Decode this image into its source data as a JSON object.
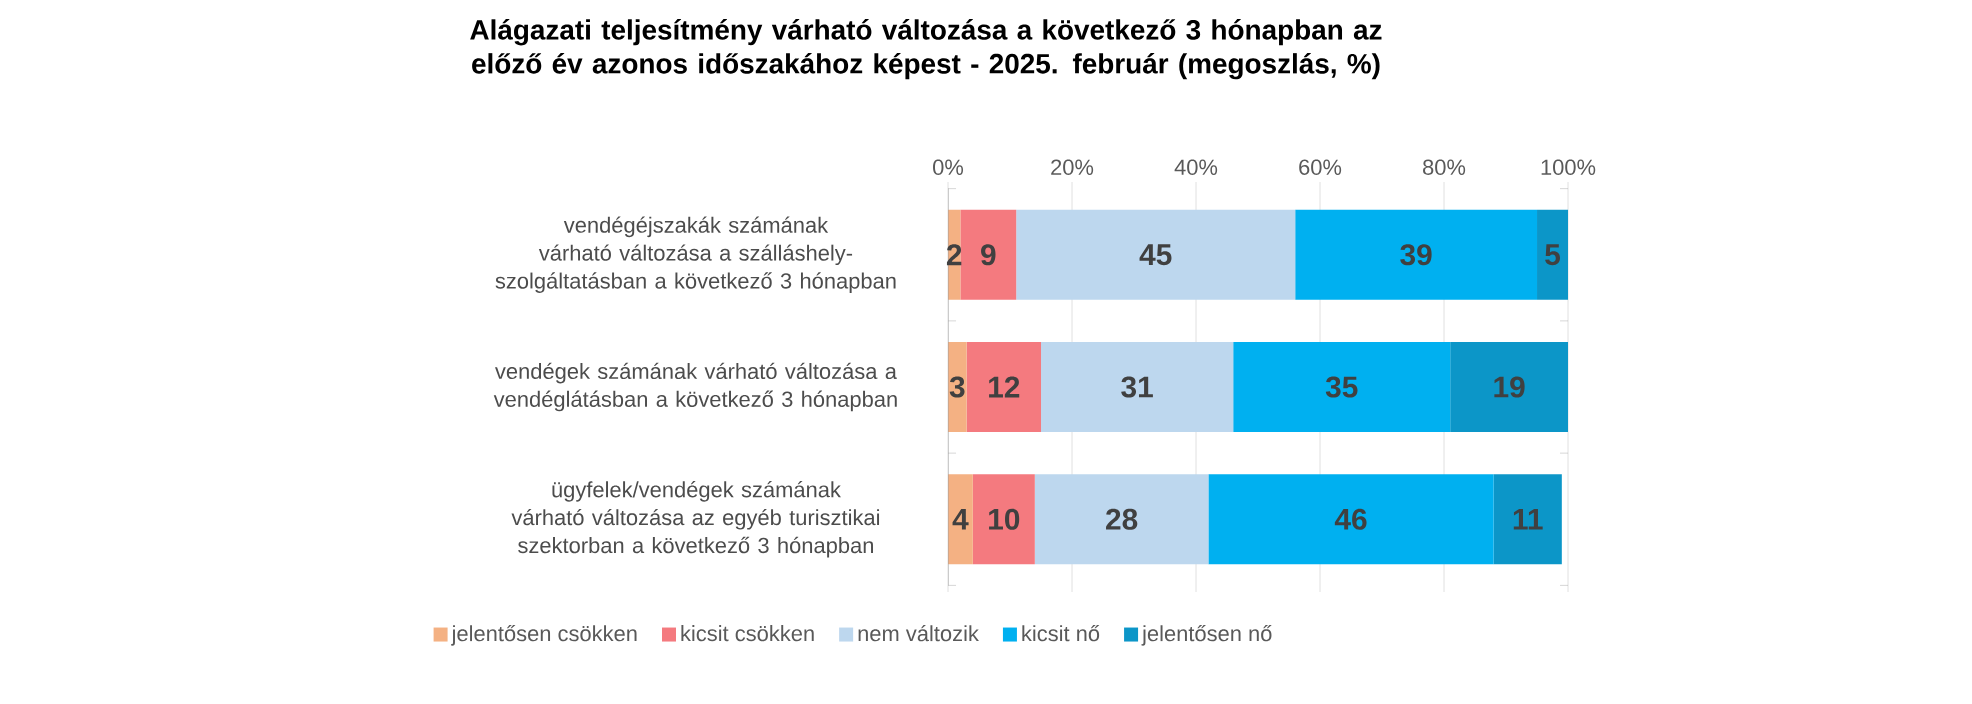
{
  "chart_data": {
    "type": "bar",
    "orientation": "horizontal",
    "stacked": true,
    "title": "Alágazati teljesítmény várható változása a következő 3 hónapban az előző év azonos időszakához képest - 2025. február (megoszlás, %)",
    "categories": [
      "vendégéjszakák számának várható változása a szálláshely-szolgáltatásban a következő 3 hónapban",
      "vendégek számának várható változása a vendéglátásban a következő 3 hónapban",
      "ügyfelek/vendégek számának várható változása az egyéb turisztikai szektorban a következő 3 hónapban"
    ],
    "series": [
      {
        "name": "jelentősen csökken",
        "color": "#f4b183",
        "values": [
          2,
          3,
          4
        ]
      },
      {
        "name": "kicsit csökken",
        "color": "#f47a7f",
        "values": [
          9,
          12,
          10
        ]
      },
      {
        "name": "nem változik",
        "color": "#bdd7ee",
        "values": [
          45,
          31,
          28
        ]
      },
      {
        "name": "kicsit nő",
        "color": "#00b0f0",
        "values": [
          39,
          35,
          46
        ]
      },
      {
        "name": "jelentősen nő",
        "color": "#0c96c8",
        "values": [
          5,
          19,
          11
        ]
      }
    ],
    "xlim": [
      0,
      100
    ],
    "xticks": [
      {
        "value": 0,
        "label": "0%"
      },
      {
        "value": 20,
        "label": "20%"
      },
      {
        "value": 40,
        "label": "40%"
      },
      {
        "value": 60,
        "label": "60%"
      },
      {
        "value": 80,
        "label": "80%"
      },
      {
        "value": 100,
        "label": "100%"
      }
    ],
    "grid": "x",
    "legend": "bottom",
    "data_labels": true
  }
}
